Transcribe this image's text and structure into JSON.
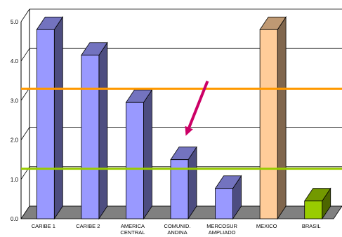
{
  "chart_data": {
    "type": "bar",
    "style": "3d",
    "title": "",
    "xlabel": "",
    "ylabel": "",
    "ylim": [
      0,
      5
    ],
    "yticks": [
      "0.0",
      "1.0",
      "2.0",
      "3.0",
      "4.0",
      "5.0"
    ],
    "grid": true,
    "categories": [
      [
        "CARIBE 1"
      ],
      [
        "CARIBE 2"
      ],
      [
        "AMERICA",
        "CENTRAL"
      ],
      [
        "COMUNID.",
        "ANDINA"
      ],
      [
        "MERCOSUR",
        "AMPLIADO"
      ],
      [
        "MEXICO"
      ],
      [
        "BRASIL"
      ]
    ],
    "values": [
      4.8,
      4.15,
      2.95,
      1.5,
      0.77,
      4.8,
      0.45
    ],
    "colors": {
      "CARIBE 1": "#9999ff",
      "CARIBE 2": "#9999ff",
      "AMERICA CENTRAL": "#9999ff",
      "COMUNID. ANDINA": "#9999ff",
      "MERCOSUR AMPLIADO": "#9999ff",
      "MEXICO": "#ffcc99",
      "BRASIL": "#99cc00"
    },
    "reference_lines": [
      {
        "value": 3.3,
        "color": "#ff9900"
      },
      {
        "value": 1.27,
        "color": "#99cc00"
      }
    ],
    "annotations": [
      {
        "type": "arrow",
        "color": "#cc0066",
        "points_to": "COMUNID. ANDINA"
      }
    ]
  }
}
